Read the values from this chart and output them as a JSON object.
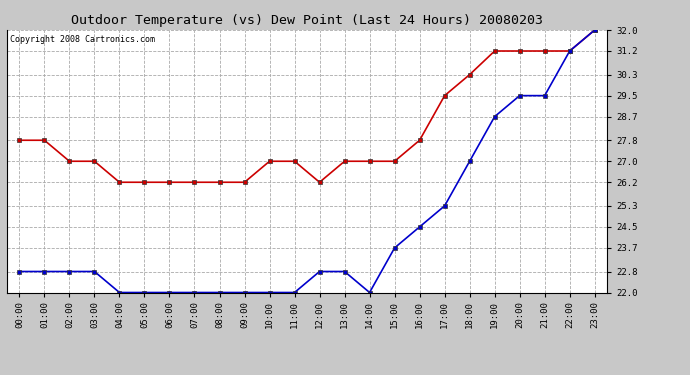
{
  "title": "Outdoor Temperature (vs) Dew Point (Last 24 Hours) 20080203",
  "copyright": "Copyright 2008 Cartronics.com",
  "x_labels": [
    "00:00",
    "01:00",
    "02:00",
    "03:00",
    "04:00",
    "05:00",
    "06:00",
    "07:00",
    "08:00",
    "09:00",
    "10:00",
    "11:00",
    "12:00",
    "13:00",
    "14:00",
    "15:00",
    "16:00",
    "17:00",
    "18:00",
    "19:00",
    "20:00",
    "21:00",
    "22:00",
    "23:00"
  ],
  "temp_data": [
    27.8,
    27.8,
    27.0,
    27.0,
    26.2,
    26.2,
    26.2,
    26.2,
    26.2,
    26.2,
    27.0,
    27.0,
    26.2,
    27.0,
    27.0,
    27.0,
    27.8,
    29.5,
    30.3,
    31.2,
    31.2,
    31.2,
    31.2,
    32.0
  ],
  "dew_data": [
    22.8,
    22.8,
    22.8,
    22.8,
    22.0,
    22.0,
    22.0,
    22.0,
    22.0,
    22.0,
    22.0,
    22.0,
    22.8,
    22.8,
    22.0,
    23.7,
    24.5,
    25.3,
    27.0,
    28.7,
    29.5,
    29.5,
    31.2,
    32.0
  ],
  "temp_color": "#cc0000",
  "dew_color": "#0000cc",
  "bg_color": "#c8c8c8",
  "plot_bg": "#ffffff",
  "grid_color": "#aaaaaa",
  "ylim": [
    22.0,
    32.0
  ],
  "yticks": [
    22.0,
    22.8,
    23.7,
    24.5,
    25.3,
    26.2,
    27.0,
    27.8,
    28.7,
    29.5,
    30.3,
    31.2,
    32.0
  ],
  "title_fontsize": 9.5,
  "copyright_fontsize": 6.0,
  "marker": "s",
  "marker_size": 3,
  "line_width": 1.2
}
